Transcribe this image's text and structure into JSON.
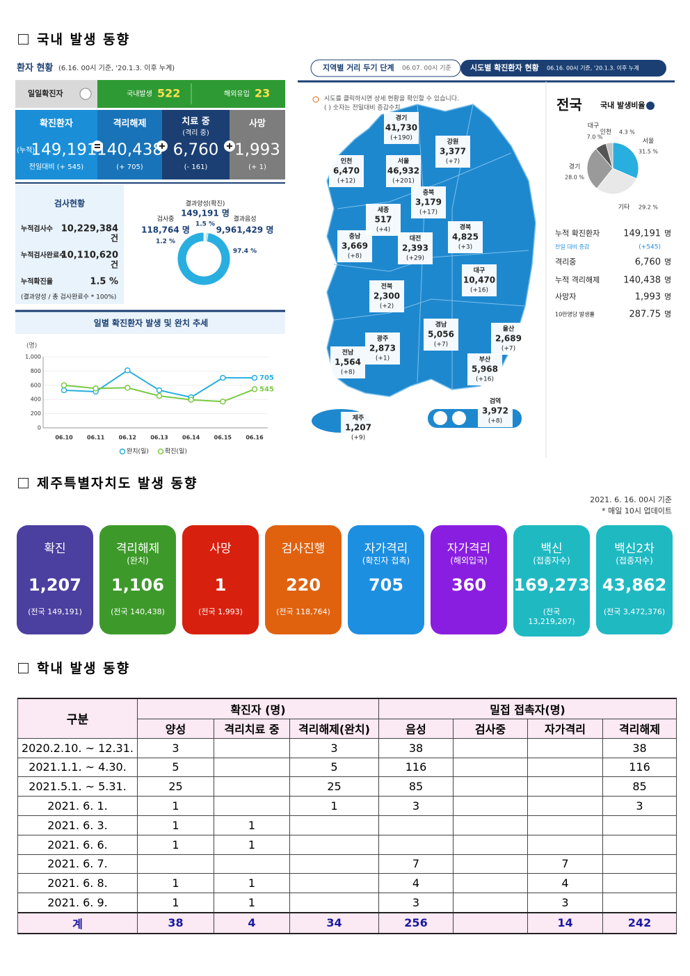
{
  "section1": {
    "heading": "국내 발생 동향",
    "status": {
      "title": "환자 현황",
      "subtitle": "(6.16. 00시 기준, '20.1.3. 이후 누계)",
      "daily": {
        "label": "일일확진자",
        "domestic_label": "국내발생",
        "domestic": "522",
        "overseas_label": "해외유입",
        "overseas": "23"
      },
      "cards": [
        {
          "title": "확진환자",
          "prefix": "(누적)",
          "value": "149,191",
          "change": "전일대비 (+ 545)"
        },
        {
          "title": "격리해제",
          "value": "140,438",
          "change": "(+ 705)"
        },
        {
          "title": "치료 중",
          "subtitle": "(격리 중)",
          "value": "6,760",
          "change": "(- 161)"
        },
        {
          "title": "사망",
          "value": "1,993",
          "change": "(+ 1)"
        }
      ]
    },
    "tests": {
      "title": "검사현황",
      "rows": [
        {
          "label": "누적검사수",
          "value": "10,229,384",
          "unit": "건"
        },
        {
          "label": "누적검사완료수",
          "value": "10,110,620",
          "unit": "건"
        },
        {
          "label": "누적확진율",
          "value": "1.5 %"
        }
      ],
      "note": "(결과양성 / 총 검사완료수 * 100%)"
    },
    "map": {
      "tab1": "지역별 거리 두기 단계",
      "tab1_date": "06.07. 00시 기준",
      "tab2": "시도별 확진환자 현황",
      "tab2_date": "06.16. 00시 기준, '20.1.3. 이후 누계",
      "note1": "시도를 클릭하시면 상세 현황을 확인할 수 있습니다.",
      "note2": "( ) 숫자는 전일대비 증감수치",
      "regions": [
        {
          "name": "경기",
          "total": "41,730",
          "change": "(+190)"
        },
        {
          "name": "강원",
          "total": "3,377",
          "change": "(+7)"
        },
        {
          "name": "인천",
          "total": "6,470",
          "change": "(+12)"
        },
        {
          "name": "서울",
          "total": "46,932",
          "change": "(+201)"
        },
        {
          "name": "충북",
          "total": "3,179",
          "change": "(+17)"
        },
        {
          "name": "세종",
          "total": "517",
          "change": "(+4)"
        },
        {
          "name": "충남",
          "total": "3,669",
          "change": "(+8)"
        },
        {
          "name": "대전",
          "total": "2,393",
          "change": "(+29)"
        },
        {
          "name": "경북",
          "total": "4,825",
          "change": "(+3)"
        },
        {
          "name": "전북",
          "total": "2,300",
          "change": "(+2)"
        },
        {
          "name": "대구",
          "total": "10,470",
          "change": "(+16)"
        },
        {
          "name": "울산",
          "total": "2,689",
          "change": "(+7)"
        },
        {
          "name": "경남",
          "total": "5,056",
          "change": "(+7)"
        },
        {
          "name": "광주",
          "total": "2,873",
          "change": "(+1)"
        },
        {
          "name": "전남",
          "total": "1,564",
          "change": "(+8)"
        },
        {
          "name": "부산",
          "total": "5,968",
          "change": "(+16)"
        },
        {
          "name": "검역",
          "total": "3,972",
          "change": "(+8)"
        },
        {
          "name": "제주",
          "total": "1,207",
          "change": "(+9)"
        }
      ]
    },
    "summary": {
      "title": "전국",
      "rows": [
        {
          "label": "누적 확진환자",
          "value": "149,191",
          "unit": "명"
        },
        {
          "label": "전일 대비 증감",
          "value": "(+545)"
        },
        {
          "label": "격리중",
          "value": "6,760",
          "unit": "명"
        },
        {
          "label": "누적 격리해제",
          "value": "140,438",
          "unit": "명"
        },
        {
          "label": "사망자",
          "value": "1,993",
          "unit": "명"
        },
        {
          "label": "10만명당 발생률",
          "value": "287.75",
          "unit": "명"
        }
      ]
    }
  },
  "chart_data": [
    {
      "type": "pie",
      "donut": true,
      "categories": [
        "결과양성(확진)",
        "검사중",
        "결과음성"
      ],
      "values": [
        1.5,
        1.2,
        97.4
      ],
      "value_labels": [
        "1.5 %",
        "1.2 %",
        "97.4 %"
      ],
      "counts": [
        "149,191 명",
        "118,764 명",
        "9,961,429 명"
      ],
      "colors": [
        "#e6f4fb",
        "#9fd9ef",
        "#29aee0"
      ]
    },
    {
      "type": "line",
      "title": "일별 확진환자 발생 및 완치 추세",
      "y_label": "(명)",
      "categories": [
        "06.10",
        "06.11",
        "06.12",
        "06.13",
        "06.14",
        "06.15",
        "06.16"
      ],
      "ylim": [
        0,
        1000
      ],
      "yticks": [
        0,
        200,
        400,
        600,
        800,
        {
          "value": 1000,
          "label": "1,000"
        }
      ],
      "grid": true,
      "series": [
        {
          "name": "완치(일)",
          "color": "#29aee0",
          "values": [
            530,
            510,
            810,
            530,
            430,
            705,
            705
          ]
        },
        {
          "name": "확진(일)",
          "color": "#7ac943",
          "values": [
            600,
            555,
            565,
            450,
            395,
            370,
            545
          ]
        }
      ]
    },
    {
      "type": "pie",
      "title": "국내 발생비율",
      "categories": [
        "서울",
        "기타",
        "경기",
        "대구",
        "인천"
      ],
      "values": [
        31.5,
        29.2,
        28.0,
        7.0,
        4.3
      ],
      "value_labels": [
        "31.5 %",
        "29.2 %",
        "28.0 %",
        "7.0 %",
        "4.3 %"
      ],
      "colors": [
        "#29aee0",
        "#e8e8e8",
        "#9a9a9a",
        "#555555",
        "#c4c4c4"
      ]
    }
  ],
  "section2": {
    "heading": "제주특별자치도 발생 동향",
    "date": "2021. 6. 16. 00시 기준",
    "note": "* 매일 10시 업데이트",
    "cards": [
      {
        "title": "확진",
        "value": "1,207",
        "national": "(전국 149,191)",
        "color": "#4b3fa0"
      },
      {
        "title": "격리해제",
        "subtitle": "(완치)",
        "value": "1,106",
        "national": "(전국 140,438)",
        "color": "#3d9a2a"
      },
      {
        "title": "사망",
        "value": "1",
        "national": "(전국 1,993)",
        "color": "#d8200e"
      },
      {
        "title": "검사진행",
        "value": "220",
        "national": "(전국 118,764)",
        "color": "#e0620f"
      },
      {
        "title": "자가격리",
        "subtitle": "(확진자 접촉)",
        "value": "705",
        "color": "#1d8fe0"
      },
      {
        "title": "자가격리",
        "subtitle": "(해외입국)",
        "value": "360",
        "color": "#8a1ee0"
      },
      {
        "title": "백신",
        "subtitle": "(접종자수)",
        "value": "169,273",
        "national": "(전국 13,219,207)",
        "color": "#1fb9c2"
      },
      {
        "title": "백신2차",
        "subtitle": "(접종자수)",
        "value": "43,862",
        "national": "(전국 3,472,376)",
        "color": "#1fb9c2"
      }
    ]
  },
  "section3": {
    "heading": "학내 발생 동향",
    "table": {
      "group": "구분",
      "groups": [
        "확진자 (명)",
        "밀접 접촉자(명)"
      ],
      "columns": [
        "양성",
        "격리치료 중",
        "격리해제(완치)",
        "음성",
        "검사중",
        "자가격리",
        "격리해제"
      ],
      "rows": [
        [
          "2020.2.10.  ~ 12.31.",
          3,
          null,
          3,
          38,
          null,
          null,
          38
        ],
        [
          "2021.1.1.  ~ 4.30.",
          5,
          null,
          5,
          116,
          null,
          null,
          116
        ],
        [
          "2021.5.1.  ~ 5.31.",
          25,
          null,
          25,
          85,
          null,
          null,
          85
        ],
        [
          "2021. 6. 1.",
          1,
          null,
          1,
          3,
          null,
          null,
          3
        ],
        [
          "2021. 6. 3.",
          1,
          1,
          null,
          null,
          null,
          null,
          null
        ],
        [
          "2021. 6. 6.",
          1,
          1,
          null,
          null,
          null,
          null,
          null
        ],
        [
          "2021. 6. 7.",
          null,
          null,
          null,
          7,
          null,
          7,
          null
        ],
        [
          "2021. 6. 8.",
          1,
          1,
          null,
          4,
          null,
          4,
          null
        ],
        [
          "2021. 6. 9.",
          1,
          1,
          null,
          3,
          null,
          3,
          null
        ]
      ],
      "total": [
        "계",
        38,
        4,
        34,
        256,
        null,
        14,
        242
      ]
    }
  }
}
